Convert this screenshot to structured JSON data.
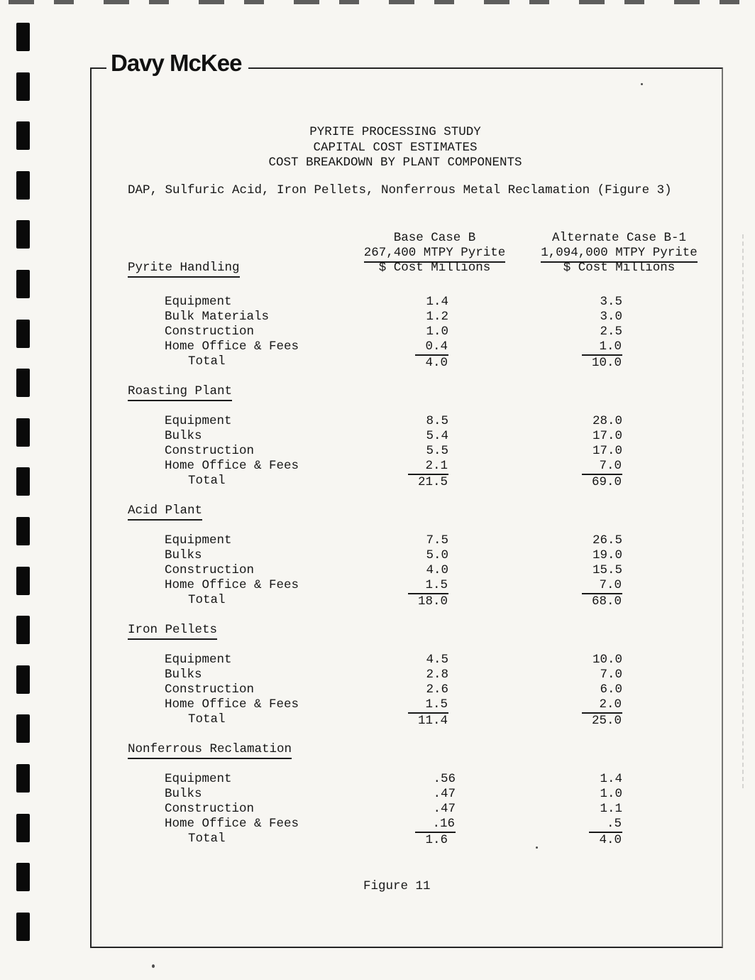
{
  "page": {
    "brand": "Davy McKee",
    "title_lines": [
      "PYRITE PROCESSING STUDY",
      "CAPITAL COST ESTIMATES",
      "COST BREAKDOWN BY PLANT COMPONENTS"
    ],
    "subtitle": "DAP, Sulfuric Acid, Iron Pellets, Nonferrous Metal Reclamation (Figure 3)",
    "figure_caption": "Figure 11"
  },
  "table": {
    "columns": [
      {
        "case_label": "Base Case B",
        "capacity": "267,400 MTPY Pyrite",
        "unit": "$ Cost Millions"
      },
      {
        "case_label": "Alternate Case B-1",
        "capacity": "1,094,000 MTPY Pyrite",
        "unit": "$ Cost Millions"
      }
    ],
    "total_label": "Total",
    "sections": [
      {
        "name": "Pyrite Handling",
        "rows": [
          {
            "label": "Equipment",
            "base": "1.4",
            "alt": "3.5"
          },
          {
            "label": "Bulk Materials",
            "base": "1.2",
            "alt": "3.0"
          },
          {
            "label": "Construction",
            "base": "1.0",
            "alt": "2.5"
          },
          {
            "label": "Home Office & Fees",
            "base": "0.4",
            "alt": "1.0",
            "underline": true
          }
        ],
        "total": {
          "base": "4.0",
          "alt": "10.0"
        }
      },
      {
        "name": "Roasting Plant",
        "rows": [
          {
            "label": "Equipment",
            "base": "8.5",
            "alt": "28.0"
          },
          {
            "label": "Bulks",
            "base": "5.4",
            "alt": "17.0"
          },
          {
            "label": "Construction",
            "base": "5.5",
            "alt": "17.0"
          },
          {
            "label": "Home Office & Fees",
            "base": "2.1",
            "alt": "7.0",
            "underline": true
          }
        ],
        "total": {
          "base": "21.5",
          "alt": "69.0"
        }
      },
      {
        "name": "Acid Plant",
        "rows": [
          {
            "label": "Equipment",
            "base": "7.5",
            "alt": "26.5"
          },
          {
            "label": "Bulks",
            "base": "5.0",
            "alt": "19.0"
          },
          {
            "label": "Construction",
            "base": "4.0",
            "alt": "15.5"
          },
          {
            "label": "Home Office & Fees",
            "base": "1.5",
            "alt": "7.0",
            "underline": true
          }
        ],
        "total": {
          "base": "18.0",
          "alt": "68.0"
        }
      },
      {
        "name": "Iron Pellets",
        "rows": [
          {
            "label": "Equipment",
            "base": "4.5",
            "alt": "10.0"
          },
          {
            "label": "Bulks",
            "base": "2.8",
            "alt": "7.0"
          },
          {
            "label": "Construction",
            "base": "2.6",
            "alt": "6.0"
          },
          {
            "label": "Home Office & Fees",
            "base": "1.5",
            "alt": "2.0",
            "underline": true
          }
        ],
        "total": {
          "base": "11.4",
          "alt": "25.0"
        }
      },
      {
        "name": "Nonferrous Reclamation",
        "rows": [
          {
            "label": "Equipment",
            "base": ".56",
            "alt": "1.4"
          },
          {
            "label": "Bulks",
            "base": ".47",
            "alt": "1.0"
          },
          {
            "label": "Construction",
            "base": ".47",
            "alt": "1.1"
          },
          {
            "label": "Home Office & Fees",
            "base": ".16",
            "alt": ".5",
            "underline": true
          }
        ],
        "total": {
          "base": "1.6",
          "alt": "4.0"
        }
      }
    ]
  },
  "colors": {
    "ink": "#161616",
    "paper": "#f7f6f2"
  }
}
